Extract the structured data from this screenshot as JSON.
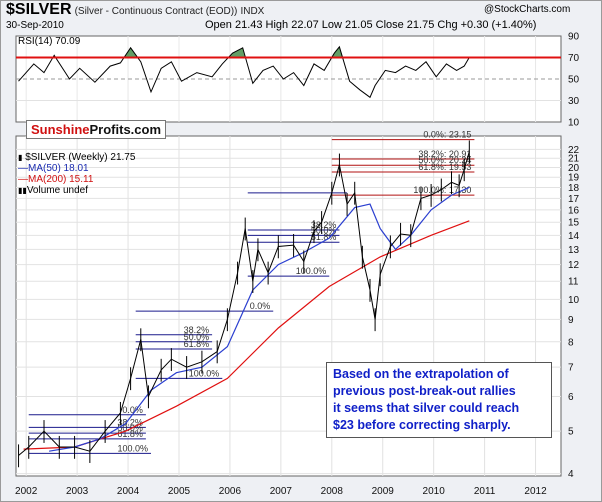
{
  "header": {
    "symbol": "$SILVER",
    "description": "(Silver - Continuous Contract (EOD))",
    "exchange": "INDX",
    "watermark": "@StockCharts.com",
    "date": "30-Sep-2010",
    "ohlc": "Open 21.43  High 22.07  Low 21.05  Close 21.75  Chg +0.30 (+1.40%)"
  },
  "rsi_panel": {
    "label": "RSI(14) 70.09",
    "ticks": [
      "90",
      "70",
      "50",
      "30",
      "10"
    ]
  },
  "brand": {
    "part1": "Sunshine",
    "part2": "Profits.com"
  },
  "legend": {
    "price": "$SILVER (Weekly) 21.75",
    "ma50": "MA(50) 18.01",
    "ma200": "MA(200) 15.11",
    "volume": "Volume undef"
  },
  "note": {
    "lines": [
      "Based on the extrapolation of",
      "previous post-break-out rallies",
      "it seems that silver could reach",
      "$23 before correcting sharply."
    ]
  },
  "fib_labels": {
    "f0": "0.0%: 23.15",
    "f382": "38.2%: 20.91",
    "f50": "50.0%: 20.24",
    "f618": "61.8%: 19.53",
    "f100": "100.0%: 17.30",
    "p1_382": "38.2%",
    "p1_50": "50.0%",
    "p1_618": "61.8%",
    "p1_100": "100.0%",
    "p2_0": "0.0%",
    "p2_382": "38.2%",
    "p2_50": "50.0%",
    "p2_618": "61.8%",
    "p2_100": "100.0%",
    "p3_0": "0.0%",
    "p3_382": "38.2%",
    "p3_50": "50.0%",
    "p3_618": "61.8%",
    "p3_100": "100.0%"
  },
  "colors": {
    "price": "#000000",
    "ma50": "#2b3fd0",
    "ma200": "#e01010",
    "rsi": "#000000",
    "rsi_fill": "#2e7d32",
    "fib": "#b01010",
    "fib_old": "#1a1a8c"
  },
  "chart_data": {
    "type": "line",
    "title": "$SILVER (Silver - Continuous Contract (EOD)) INDX",
    "x_ticks": [
      "2002",
      "2003",
      "2004",
      "2005",
      "2006",
      "2007",
      "2008",
      "2009",
      "2010",
      "2011",
      "2012"
    ],
    "y_ticks": [
      "22",
      "21",
      "20",
      "19",
      "18",
      "17",
      "16",
      "15",
      "14",
      "13",
      "12",
      "11",
      "10",
      "9",
      "8",
      "7",
      "6",
      "5",
      "4"
    ],
    "ylim": [
      3.95,
      23.6
    ],
    "y_scale": "log",
    "series": [
      {
        "name": "$SILVER (Weekly)",
        "x": [
          2001.9,
          2002.1,
          2002.4,
          2002.7,
          2003.0,
          2003.3,
          2003.6,
          2003.9,
          2004.1,
          2004.3,
          2004.45,
          2004.7,
          2004.9,
          2005.2,
          2005.5,
          2005.8,
          2006.0,
          2006.2,
          2006.35,
          2006.5,
          2006.6,
          2006.8,
          2007.0,
          2007.3,
          2007.5,
          2007.7,
          2007.85,
          2008.05,
          2008.2,
          2008.35,
          2008.5,
          2008.65,
          2008.8,
          2008.9,
          2009.0,
          2009.2,
          2009.4,
          2009.6,
          2009.8,
          2010.0,
          2010.2,
          2010.4,
          2010.55,
          2010.65,
          2010.75
        ],
        "y": [
          4.4,
          4.6,
          5.0,
          4.6,
          4.6,
          4.5,
          5.0,
          5.5,
          6.6,
          8.1,
          6.0,
          6.9,
          7.3,
          7.0,
          7.2,
          7.6,
          9.0,
          11.5,
          14.5,
          11.0,
          13.0,
          11.5,
          13.2,
          13.3,
          12.2,
          14.3,
          15.0,
          17.5,
          20.3,
          16.5,
          17.5,
          12.5,
          10.5,
          9.0,
          11.4,
          13.2,
          14.1,
          14.0,
          17.0,
          17.3,
          17.8,
          18.5,
          18.2,
          19.8,
          21.75
        ]
      },
      {
        "name": "MA(50)",
        "x": [
          2002.5,
          2003.0,
          2003.5,
          2004.0,
          2004.5,
          2005.0,
          2005.5,
          2006.0,
          2006.5,
          2007.0,
          2007.5,
          2008.0,
          2008.5,
          2008.8,
          2009.0,
          2009.3,
          2009.6,
          2010.0,
          2010.4,
          2010.75
        ],
        "y": [
          4.5,
          4.6,
          4.8,
          5.2,
          6.2,
          6.8,
          7.0,
          7.8,
          10.5,
          12.0,
          12.8,
          13.8,
          16.2,
          16.5,
          14.5,
          13.0,
          14.0,
          16.0,
          17.3,
          18.01
        ]
      },
      {
        "name": "MA(200)",
        "x": [
          2002.0,
          2003.0,
          2004.0,
          2005.0,
          2006.0,
          2007.0,
          2008.0,
          2009.0,
          2010.0,
          2010.75
        ],
        "y": [
          4.55,
          4.6,
          5.0,
          5.7,
          6.6,
          8.6,
          10.7,
          12.5,
          14.0,
          15.11
        ]
      }
    ],
    "rsi": {
      "name": "RSI(14)",
      "ylim": [
        10,
        90
      ],
      "x": [
        2001.9,
        2002.2,
        2002.4,
        2002.6,
        2002.9,
        2003.1,
        2003.4,
        2003.7,
        2003.9,
        2004.1,
        2004.3,
        2004.5,
        2004.7,
        2004.9,
        2005.1,
        2005.4,
        2005.7,
        2005.9,
        2006.1,
        2006.3,
        2006.5,
        2006.7,
        2006.9,
        2007.1,
        2007.3,
        2007.5,
        2007.7,
        2007.9,
        2008.1,
        2008.2,
        2008.4,
        2008.6,
        2008.8,
        2008.9,
        2009.1,
        2009.3,
        2009.5,
        2009.7,
        2009.9,
        2010.1,
        2010.3,
        2010.5,
        2010.65,
        2010.75
      ],
      "y": [
        48,
        64,
        56,
        72,
        50,
        60,
        47,
        62,
        65,
        79,
        66,
        38,
        60,
        66,
        48,
        56,
        52,
        64,
        74,
        79,
        46,
        58,
        62,
        50,
        56,
        44,
        64,
        58,
        74,
        80,
        48,
        40,
        33,
        44,
        58,
        56,
        62,
        58,
        66,
        52,
        64,
        58,
        62,
        70.09
      ]
    }
  }
}
